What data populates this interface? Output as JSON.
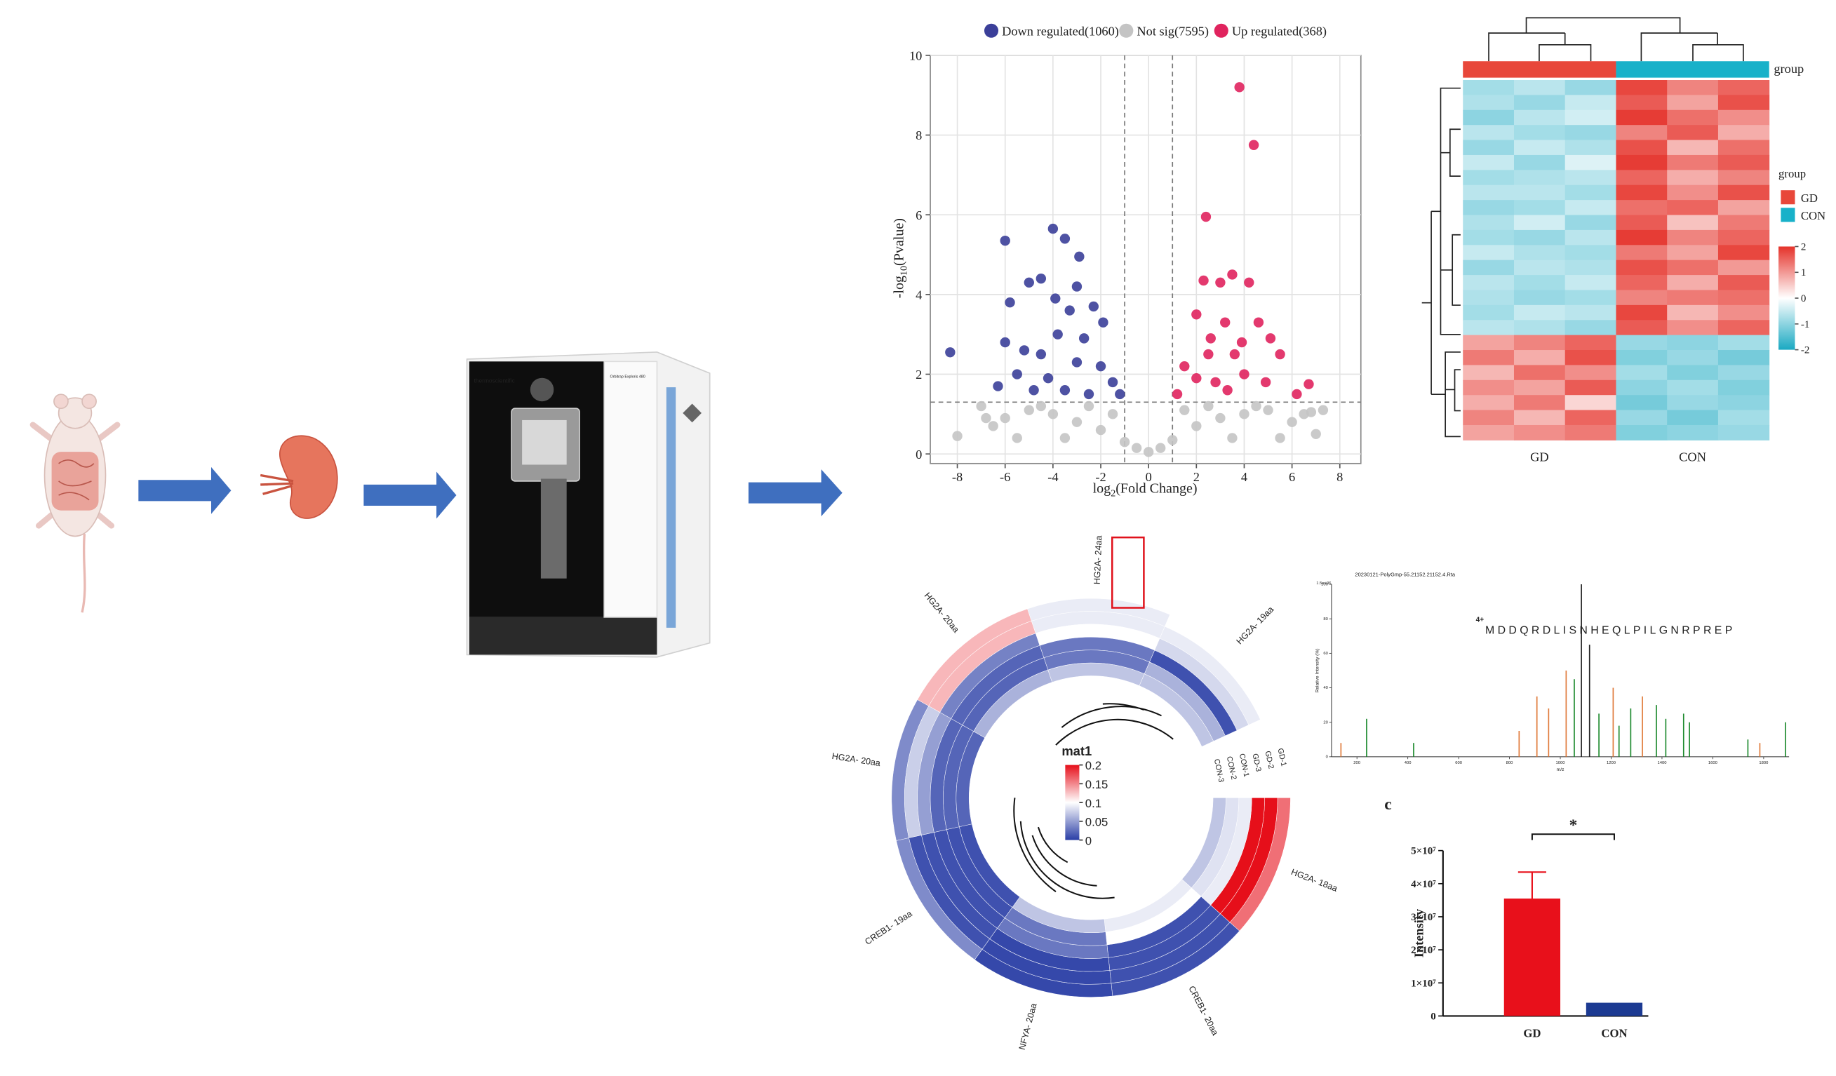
{
  "illustration": {
    "instrument_brand": "thermoscientific",
    "instrument_model": "Orbitrap Exploris 480"
  },
  "chart_data": [
    {
      "type": "volcano",
      "x_label": [
        "log",
        "2",
        "(Fold Change)"
      ],
      "y_label": [
        "-log",
        "10",
        "(Pvalue)"
      ],
      "xlim": [
        -9.13,
        8.88
      ],
      "ylim": [
        -0.24,
        10
      ],
      "xticks": [
        -8,
        -6,
        -4,
        -2,
        0,
        2,
        4,
        6,
        8
      ],
      "yticks": [
        0,
        2,
        4,
        6,
        8,
        10
      ],
      "grid": true,
      "thresholds": {
        "x": [
          -1,
          1
        ],
        "y": 1.3
      },
      "series": [
        {
          "name": "Not sig(7595)",
          "color": "#c4c4c4",
          "x": [
            -8,
            -6.5,
            -6,
            -5,
            -4,
            -3,
            -2,
            -1,
            -0.5,
            0,
            0.5,
            1,
            2,
            3,
            4,
            5,
            6,
            6.5,
            7,
            7.3,
            -7,
            -1.5,
            1.5,
            -3.5,
            3.5,
            -5.5,
            5.5,
            -4.5,
            -2.5,
            2.5,
            4.5,
            -6.8,
            6.8
          ],
          "y": [
            0.45,
            0.7,
            0.9,
            1.1,
            1.0,
            0.8,
            0.6,
            0.3,
            0.15,
            0.05,
            0.15,
            0.35,
            0.7,
            0.9,
            1.0,
            1.1,
            0.8,
            1.0,
            0.5,
            1.1,
            1.2,
            1.0,
            1.1,
            0.4,
            0.4,
            0.4,
            0.4,
            1.2,
            1.2,
            1.2,
            1.2,
            0.9,
            1.05
          ]
        },
        {
          "name": "Down regulated(1060)",
          "color": "#3b3f99",
          "x": [
            -8.3,
            -6,
            -4,
            -3.5,
            -2.9,
            -5.8,
            -5,
            -4.5,
            -3,
            -2.3,
            -1.9,
            -3.8,
            -4.5,
            -3,
            -2,
            -5.5,
            -6.3,
            -1.5,
            -3.5,
            -4.2,
            -2.5,
            -6,
            -3.3,
            -1.2,
            -4.8,
            -3.9,
            -2.7,
            -5.2
          ],
          "y": [
            2.55,
            5.35,
            5.65,
            5.4,
            4.95,
            3.8,
            4.3,
            4.4,
            4.2,
            3.7,
            3.3,
            3.0,
            2.5,
            2.3,
            2.2,
            2.0,
            1.7,
            1.8,
            1.6,
            1.9,
            1.5,
            2.8,
            3.6,
            1.5,
            1.6,
            3.9,
            2.9,
            2.6
          ]
        },
        {
          "name": "Up regulated(368)",
          "color": "#e0245e",
          "x": [
            3.8,
            4.4,
            2.4,
            3.5,
            2.3,
            3.0,
            4.2,
            2.0,
            3.2,
            4.6,
            5.1,
            2.5,
            3.6,
            1.5,
            5.5,
            6.7,
            6.2,
            2.8,
            1.2,
            4.0,
            3.3,
            2.0,
            2.6,
            3.9,
            4.9
          ],
          "y": [
            9.2,
            7.75,
            5.95,
            4.5,
            4.35,
            4.3,
            4.3,
            3.5,
            3.3,
            3.3,
            2.9,
            2.5,
            2.5,
            2.2,
            2.5,
            1.75,
            1.5,
            1.8,
            1.5,
            2.0,
            1.6,
            1.9,
            2.9,
            2.8,
            1.8
          ]
        }
      ]
    },
    {
      "type": "heatmap",
      "group_title": "group",
      "clim": [
        -2,
        2
      ],
      "colors": [
        "#1aa9c2",
        "#ffffff",
        "#e5322a"
      ],
      "colorbar_ticks": [
        2,
        1,
        0,
        -1,
        -2
      ],
      "groups": [
        {
          "name": "GD",
          "color": "#e8473a",
          "values": [
            [
              -0.8,
              -0.6,
              -0.9
            ],
            [
              -0.7,
              -0.9,
              -0.5
            ],
            [
              -1.0,
              -0.6,
              -0.4
            ],
            [
              -0.6,
              -0.8,
              -0.9
            ],
            [
              -0.9,
              -0.5,
              -0.7
            ],
            [
              -0.5,
              -0.9,
              -0.3
            ],
            [
              -0.8,
              -0.7,
              -0.6
            ],
            [
              -0.6,
              -0.6,
              -0.8
            ],
            [
              -0.9,
              -0.8,
              -0.5
            ],
            [
              -0.7,
              -0.4,
              -0.9
            ],
            [
              -0.8,
              -0.9,
              -0.6
            ],
            [
              -0.5,
              -0.7,
              -0.8
            ],
            [
              -0.9,
              -0.6,
              -0.7
            ],
            [
              -0.6,
              -0.8,
              -0.5
            ],
            [
              -0.7,
              -0.9,
              -0.8
            ],
            [
              -0.8,
              -0.5,
              -0.6
            ],
            [
              -0.6,
              -0.7,
              -0.9
            ],
            [
              0.9,
              1.2,
              1.5
            ],
            [
              1.3,
              0.8,
              1.7
            ],
            [
              0.7,
              1.4,
              1.1
            ],
            [
              1.1,
              0.9,
              1.6
            ],
            [
              0.8,
              1.3,
              0.4
            ],
            [
              1.2,
              0.7,
              1.5
            ],
            [
              0.9,
              1.1,
              1.3
            ]
          ]
        },
        {
          "name": "CON",
          "color": "#18b1c9",
          "values": [
            [
              1.8,
              1.2,
              1.5
            ],
            [
              1.6,
              0.9,
              1.7
            ],
            [
              1.9,
              1.4,
              1.1
            ],
            [
              1.2,
              1.6,
              0.8
            ],
            [
              1.7,
              0.7,
              1.4
            ],
            [
              1.9,
              1.3,
              1.6
            ],
            [
              1.5,
              0.8,
              1.2
            ],
            [
              1.8,
              1.1,
              1.7
            ],
            [
              1.4,
              1.5,
              0.9
            ],
            [
              1.6,
              0.6,
              1.3
            ],
            [
              1.9,
              1.2,
              1.5
            ],
            [
              1.3,
              0.9,
              1.8
            ],
            [
              1.7,
              1.4,
              1.0
            ],
            [
              1.5,
              0.8,
              1.6
            ],
            [
              1.2,
              1.3,
              1.4
            ],
            [
              1.8,
              0.7,
              1.1
            ],
            [
              1.6,
              1.1,
              1.5
            ],
            [
              -0.9,
              -1.0,
              -0.8
            ],
            [
              -1.1,
              -0.9,
              -1.2
            ],
            [
              -0.8,
              -1.1,
              -0.9
            ],
            [
              -1.0,
              -0.8,
              -1.1
            ],
            [
              -1.2,
              -0.9,
              -1.0
            ],
            [
              -0.9,
              -1.2,
              -0.8
            ],
            [
              -1.1,
              -1.0,
              -0.9
            ]
          ]
        }
      ]
    },
    {
      "type": "circular_heatmap",
      "legend_title": "mat1",
      "clim": [
        0,
        0.2
      ],
      "colors": [
        "#2a3ea6",
        "#ffffff",
        "#e60f1a"
      ],
      "colorbar_ticks": [
        0.2,
        0.15,
        0.1,
        0.05,
        0
      ],
      "rings": [
        "GD-1",
        "GD-2",
        "GD-3",
        "CON-1",
        "CON-2",
        "CON-3"
      ],
      "sectors": [
        "HG2A- 18aa",
        "CREB1- 20aa",
        "NFYA- 20aa",
        "CREB1- 19aa",
        "HG2A- 20aa",
        "HG2A- 20aa",
        "HG2A- 24aa",
        "HG2A- 19aa"
      ],
      "values": [
        [
          0.16,
          0.2,
          0.2,
          0.09,
          0.085,
          0.07
        ],
        [
          0.01,
          0.01,
          0.01,
          0.01,
          0.1,
          0.09
        ],
        [
          0.005,
          0.005,
          0.005,
          0.03,
          0.03,
          0.07
        ],
        [
          0.04,
          0.01,
          0.01,
          0.01,
          0.01,
          0.01
        ],
        [
          0.04,
          0.075,
          0.05,
          0.02,
          0.02,
          0.02
        ],
        [
          0.13,
          0.13,
          0.035,
          0.02,
          0.02,
          0.06
        ],
        [
          0.09,
          0.09,
          0.1,
          0.03,
          0.03,
          0.07
        ],
        [
          0.1,
          0.09,
          0.08,
          0.01,
          0.06,
          0.07
        ]
      ]
    },
    {
      "type": "spectrum",
      "title": "20230121-PolyGmp-55.21152.21152.4.Rta",
      "scale_label": "1.5e+06",
      "sequence": "MDDQRDLISNHEQLPILGNRPREP",
      "charge": "4+",
      "x_label": "m/z",
      "y_label": "Relative Intensity (%)",
      "xlim": [
        100,
        1900
      ],
      "ylim": [
        0,
        100
      ],
      "xticks": [
        200,
        400,
        600,
        800,
        1000,
        1200,
        1400,
        1600,
        1800
      ],
      "yticks": [
        0,
        20,
        40,
        60,
        80,
        100
      ],
      "x": [
        137,
        238,
        423,
        838,
        908,
        954,
        1023,
        1055,
        1083,
        1115,
        1152,
        1208,
        1231,
        1277,
        1323,
        1378,
        1415,
        1485,
        1508,
        1738,
        1785,
        1886
      ],
      "values": [
        8,
        22,
        8,
        15,
        35,
        28,
        50,
        45,
        100,
        65,
        25,
        40,
        18,
        28,
        35,
        30,
        22,
        25,
        20,
        10,
        8,
        20
      ],
      "colors": [
        "#e07a3a",
        "#1d8a2e",
        "#1d8a2e",
        "#e07a3a",
        "#e07a3a",
        "#e07a3a",
        "#e07a3a",
        "#1d8a2e",
        "#222222",
        "#222222",
        "#1d8a2e",
        "#e07a3a",
        "#1d8a2e",
        "#1d8a2e",
        "#e07a3a",
        "#1d8a2e",
        "#1d8a2e",
        "#1d8a2e",
        "#1d8a2e",
        "#1d8a2e",
        "#e07a3a",
        "#1d8a2e"
      ]
    },
    {
      "type": "bar",
      "panel_label": "c",
      "y_label": "Intensity",
      "categories": [
        "GD",
        "CON"
      ],
      "values": [
        35500000,
        4000000
      ],
      "errors": [
        8000000,
        null
      ],
      "colors": [
        "#e8101b",
        "#1c3a92"
      ],
      "annotation": "*",
      "ylim": [
        0,
        50000000
      ],
      "yticks": [
        0,
        {
          "value": 10000000,
          "label": "1×10⁷"
        },
        {
          "value": 20000000,
          "label": "2×10⁷"
        },
        {
          "value": 30000000,
          "label": "3×10⁷"
        },
        {
          "value": 40000000,
          "label": "4×10⁷"
        },
        {
          "value": 50000000,
          "label": "5×10⁷"
        }
      ]
    }
  ]
}
